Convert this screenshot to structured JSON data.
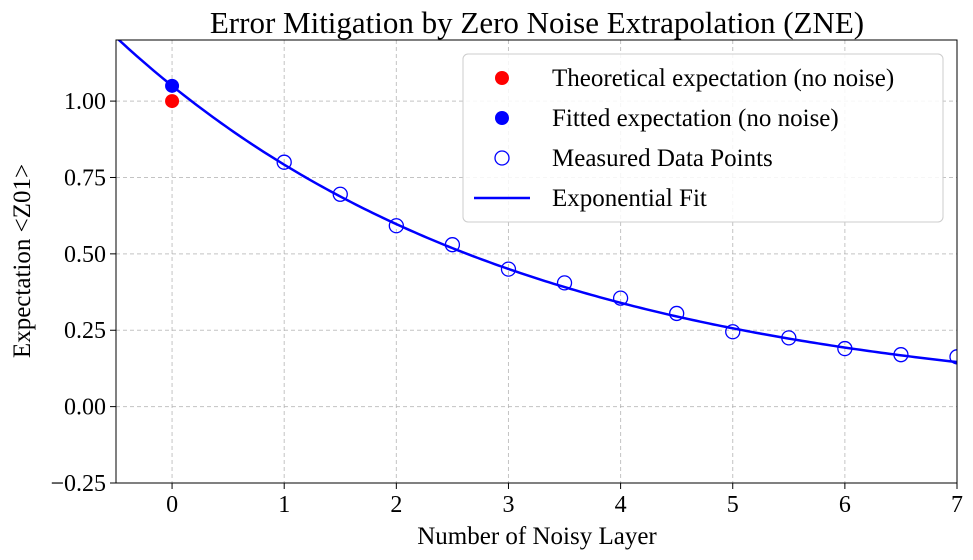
{
  "chart_data": {
    "type": "scatter",
    "title": "Error Mitigation by Zero Noise Extrapolation (ZNE)",
    "xlabel": "Number of Noisy Layer",
    "ylabel": "Expectation <Z01>",
    "xlim": [
      -0.5,
      7
    ],
    "ylim": [
      -0.25,
      1.2
    ],
    "xticks": [
      0,
      1,
      2,
      3,
      4,
      5,
      6,
      7
    ],
    "yticks": [
      -0.25,
      0.0,
      0.25,
      0.5,
      0.75,
      1.0
    ],
    "ytick_labels": [
      "−0.25",
      "0.00",
      "0.25",
      "0.50",
      "0.75",
      "1.00"
    ],
    "grid": true,
    "legend_position": "top-right",
    "series": [
      {
        "name": "Theoretical expectation (no noise)",
        "kind": "point",
        "marker": "filled-circle",
        "color": "#ff0000",
        "points": [
          [
            0,
            1.0
          ]
        ]
      },
      {
        "name": "Fitted expectation (no noise)",
        "kind": "point",
        "marker": "filled-circle",
        "color": "#0000ff",
        "points": [
          [
            0,
            1.05
          ]
        ]
      },
      {
        "name": "Measured Data Points",
        "kind": "scatter",
        "marker": "hollow-circle",
        "color": "#0000ff",
        "points": [
          [
            1,
            0.8
          ],
          [
            1.5,
            0.695
          ],
          [
            2,
            0.592
          ],
          [
            2.5,
            0.53
          ],
          [
            3,
            0.45
          ],
          [
            3.5,
            0.405
          ],
          [
            4,
            0.355
          ],
          [
            4.5,
            0.305
          ],
          [
            5,
            0.245
          ],
          [
            5.5,
            0.225
          ],
          [
            6,
            0.19
          ],
          [
            6.5,
            0.17
          ],
          [
            7,
            0.163
          ]
        ]
      },
      {
        "name": "Exponential Fit",
        "kind": "line",
        "color": "#0000ff",
        "fit": {
          "a": 1.05,
          "b": 0.282
        }
      }
    ]
  }
}
